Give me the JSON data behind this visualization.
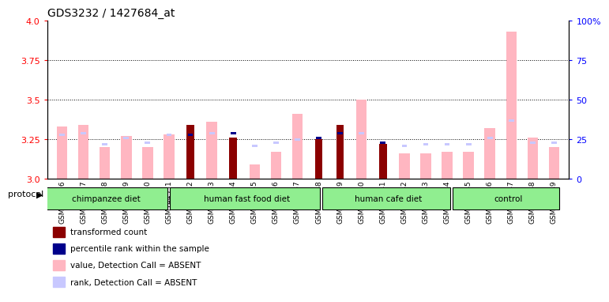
{
  "title": "GDS3232 / 1427684_at",
  "samples": [
    "GSM144526",
    "GSM144527",
    "GSM144528",
    "GSM144529",
    "GSM144530",
    "GSM144531",
    "GSM144532",
    "GSM144533",
    "GSM144534",
    "GSM144535",
    "GSM144536",
    "GSM144537",
    "GSM144538",
    "GSM144539",
    "GSM144540",
    "GSM144541",
    "GSM144542",
    "GSM144543",
    "GSM144544",
    "GSM144545",
    "GSM144546",
    "GSM144547",
    "GSM144548",
    "GSM144549"
  ],
  "value_absent": [
    3.33,
    3.34,
    3.2,
    3.27,
    3.2,
    3.28,
    0,
    3.36,
    0,
    3.09,
    3.17,
    3.41,
    0,
    0,
    3.5,
    0,
    3.16,
    3.16,
    3.17,
    3.17,
    3.32,
    3.93,
    3.26,
    3.2
  ],
  "value_present": [
    0,
    0,
    0,
    0,
    0,
    0,
    3.34,
    0,
    3.26,
    0,
    0,
    0,
    3.25,
    3.34,
    0,
    3.22,
    0,
    0,
    0,
    0,
    0,
    0,
    0,
    0
  ],
  "rank_absent": [
    3.27,
    3.28,
    3.21,
    3.25,
    3.22,
    3.27,
    0,
    3.28,
    0,
    3.2,
    3.22,
    3.24,
    0,
    0,
    3.28,
    0,
    3.2,
    3.21,
    3.21,
    3.21,
    3.25,
    3.36,
    3.22,
    3.22
  ],
  "rank_present": [
    0,
    0,
    0,
    0,
    0,
    0,
    3.27,
    0,
    3.28,
    0,
    0,
    0,
    3.25,
    3.28,
    0,
    3.22,
    0,
    0,
    0,
    0,
    0,
    0,
    0,
    0
  ],
  "groups": [
    {
      "label": "chimpanzee diet",
      "start": 0,
      "end": 5,
      "color": "#90ee90"
    },
    {
      "label": "human fast food diet",
      "start": 6,
      "end": 12,
      "color": "#90ee90"
    },
    {
      "label": "human cafe diet",
      "start": 13,
      "end": 18,
      "color": "#90ee90"
    },
    {
      "label": "control",
      "start": 19,
      "end": 23,
      "color": "#90ee90"
    }
  ],
  "ylim": [
    3.0,
    4.0
  ],
  "yticks_left": [
    3.0,
    3.25,
    3.5,
    3.75,
    4.0
  ],
  "yticks_right": [
    0,
    25,
    50,
    75,
    100
  ],
  "ytick_labels_right": [
    "0",
    "25",
    "50",
    "75",
    "100%"
  ],
  "bar_color_absent": "#ffb6c1",
  "rank_color_absent": "#c8c8ff",
  "bar_color_present": "#8b0000",
  "rank_color_present": "#00008b",
  "bar_width": 0.5,
  "background_color": "#ffffff",
  "legend_items": [
    {
      "color": "#8b0000",
      "label": "transformed count"
    },
    {
      "color": "#00008b",
      "label": "percentile rank within the sample"
    },
    {
      "color": "#ffb6c1",
      "label": "value, Detection Call = ABSENT"
    },
    {
      "color": "#c8c8ff",
      "label": "rank, Detection Call = ABSENT"
    }
  ]
}
